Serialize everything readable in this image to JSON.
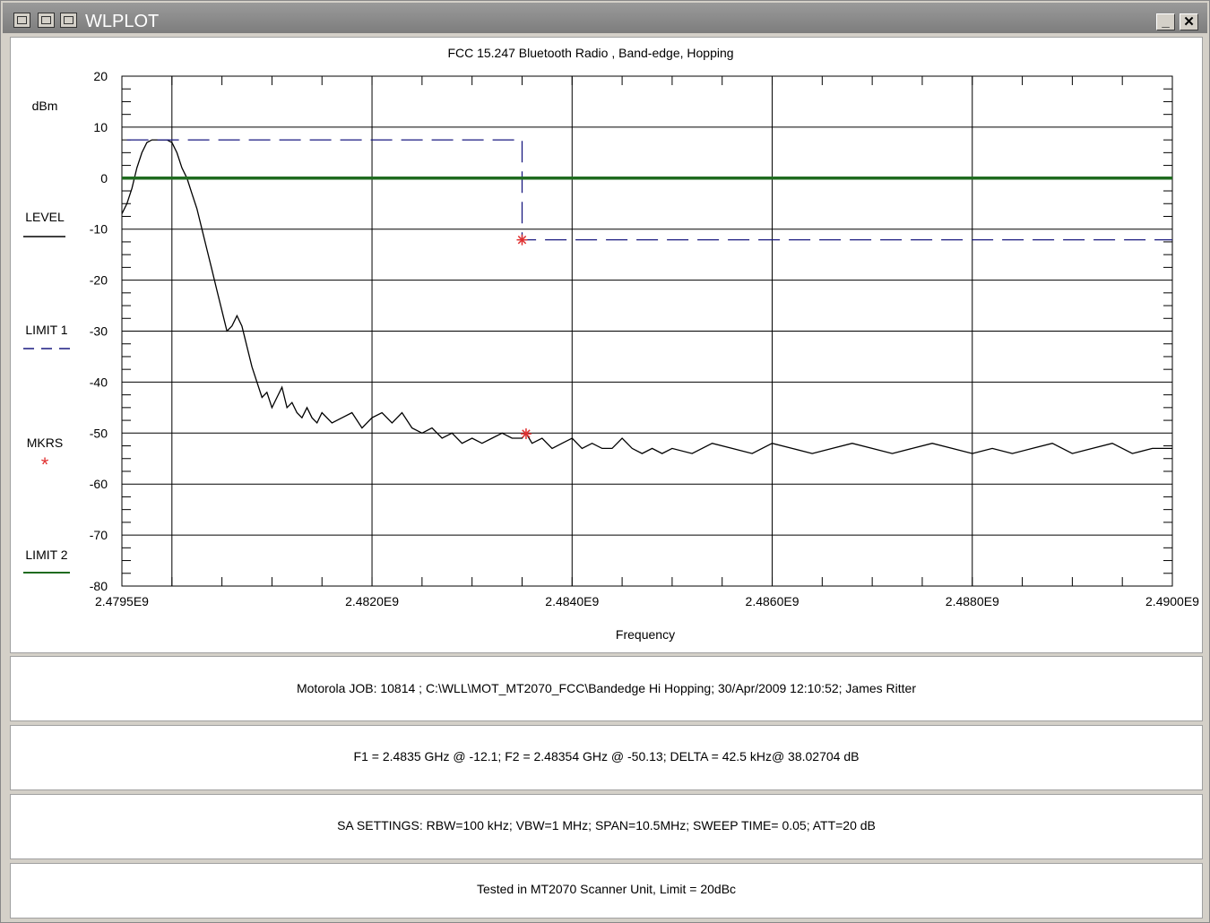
{
  "window": {
    "title": "WLPLOT",
    "minimize_label": "_",
    "close_label": "✕"
  },
  "chart_data": {
    "type": "line",
    "title": "FCC 15.247 Bluetooth Radio , Band-edge, Hopping",
    "xlabel": "Frequency",
    "ylabel": "dBm",
    "xlim": [
      2479500000.0,
      2490000000.0
    ],
    "ylim": [
      -80,
      20
    ],
    "x_tick_labels": [
      "2.4795E9",
      "2.4820E9",
      "2.4840E9",
      "2.4860E9",
      "2.4880E9",
      "2.4900E9"
    ],
    "x_ticks": [
      2479500000.0,
      2482000000.0,
      2484000000.0,
      2486000000.0,
      2488000000.0,
      2490000000.0
    ],
    "y_ticks": [
      20,
      10,
      0,
      -10,
      -20,
      -30,
      -40,
      -50,
      -60,
      -70,
      -80
    ],
    "grid": true,
    "legend_placement": "left",
    "series": [
      {
        "name": "LEVEL",
        "color": "#000000",
        "x": [
          2479500000.0,
          2479550000.0,
          2479600000.0,
          2479650000.0,
          2479700000.0,
          2479750000.0,
          2479800000.0,
          2479850000.0,
          2479900000.0,
          2479950000.0,
          2480000000.0,
          2480050000.0,
          2480100000.0,
          2480150000.0,
          2480200000.0,
          2480250000.0,
          2480300000.0,
          2480350000.0,
          2480400000.0,
          2480450000.0,
          2480500000.0,
          2480550000.0,
          2480600000.0,
          2480650000.0,
          2480700000.0,
          2480750000.0,
          2480800000.0,
          2480850000.0,
          2480900000.0,
          2480950000.0,
          2481000000.0,
          2481050000.0,
          2481100000.0,
          2481150000.0,
          2481200000.0,
          2481250000.0,
          2481300000.0,
          2481350000.0,
          2481400000.0,
          2481450000.0,
          2481500000.0,
          2481600000.0,
          2481700000.0,
          2481800000.0,
          2481900000.0,
          2482000000.0,
          2482100000.0,
          2482200000.0,
          2482300000.0,
          2482400000.0,
          2482500000.0,
          2482600000.0,
          2482700000.0,
          2482800000.0,
          2482900000.0,
          2483000000.0,
          2483100000.0,
          2483200000.0,
          2483300000.0,
          2483400000.0,
          2483500000.0,
          2483540000.0,
          2483600000.0,
          2483700000.0,
          2483800000.0,
          2483900000.0,
          2484000000.0,
          2484100000.0,
          2484200000.0,
          2484300000.0,
          2484400000.0,
          2484500000.0,
          2484600000.0,
          2484700000.0,
          2484800000.0,
          2484900000.0,
          2485000000.0,
          2485200000.0,
          2485400000.0,
          2485600000.0,
          2485800000.0,
          2486000000.0,
          2486200000.0,
          2486400000.0,
          2486600000.0,
          2486800000.0,
          2487000000.0,
          2487200000.0,
          2487400000.0,
          2487600000.0,
          2487800000.0,
          2488000000.0,
          2488200000.0,
          2488400000.0,
          2488600000.0,
          2488800000.0,
          2489000000.0,
          2489200000.0,
          2489400000.0,
          2489600000.0,
          2489800000.0,
          2490000000.0
        ],
        "y": [
          -7,
          -5,
          -2,
          2,
          5,
          7,
          7.5,
          7.5,
          7.5,
          7.5,
          7,
          5,
          2,
          0,
          -3,
          -6,
          -10,
          -14,
          -18,
          -22,
          -26,
          -30,
          -29,
          -27,
          -29,
          -33,
          -37,
          -40,
          -43,
          -42,
          -45,
          -43,
          -41,
          -45,
          -44,
          -46,
          -47,
          -45,
          -47,
          -48,
          -46,
          -48,
          -47,
          -46,
          -49,
          -47,
          -46,
          -48,
          -46,
          -49,
          -50,
          -49,
          -51,
          -50,
          -52,
          -51,
          -52,
          -51,
          -50,
          -51,
          -51,
          -50,
          -52,
          -51,
          -53,
          -52,
          -51,
          -53,
          -52,
          -53,
          -53,
          -51,
          -53,
          -54,
          -53,
          -54,
          -53,
          -54,
          -52,
          -53,
          -54,
          -52,
          -53,
          -54,
          -53,
          -52,
          -53,
          -54,
          -53,
          -52,
          -53,
          -54,
          -53,
          -54,
          -53,
          -52,
          -54,
          -53,
          -52,
          -54,
          -53,
          -53
        ]
      },
      {
        "name": "LIMIT 1",
        "color": "#1a1a80",
        "x": [
          2479550000.0,
          2483500000.0,
          2483500000.0,
          2490000000.0
        ],
        "y": [
          7.5,
          7.5,
          -12.1,
          -12.1
        ]
      },
      {
        "name": "LIMIT 2",
        "color": "#1f6b1f",
        "x": [
          2479500000.0,
          2490000000.0
        ],
        "y": [
          0,
          0
        ]
      }
    ],
    "markers": [
      {
        "name": "MKRS",
        "color": "#e03030",
        "x": 2483500000.0,
        "y": -12.1
      },
      {
        "name": "MKRS",
        "color": "#e03030",
        "x": 2483540000.0,
        "y": -50.13
      }
    ]
  },
  "legend": {
    "ylabel": "dBm",
    "level": "LEVEL",
    "limit1": "LIMIT 1",
    "mkrs": "MKRS",
    "mkrs_symbol": "*",
    "limit2": "LIMIT 2"
  },
  "info": {
    "job_line": "Motorola  JOB: 10814   ; C:\\WLL\\MOT_MT2070_FCC\\Bandedge Hi Hopping;    30/Apr/2009 12:10:52; James Ritter",
    "marker_line": "F1 = 2.4835 GHz @ -12.1;   F2 = 2.48354 GHz @ -50.13;    DELTA = 42.5 kHz@ 38.02704 dB",
    "sa_line": "SA SETTINGS: RBW=100 kHz; VBW=1 MHz; SPAN=10.5MHz; SWEEP TIME= 0.05; ATT=20 dB",
    "tested_line": "Tested in MT2070 Scanner Unit, Limit =  20dBc"
  }
}
